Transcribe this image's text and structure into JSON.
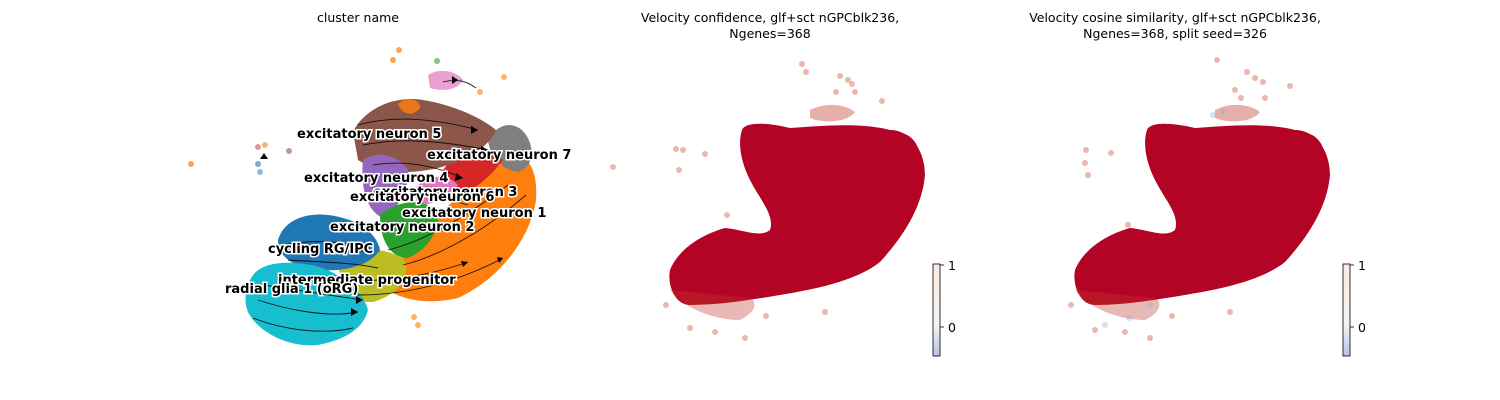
{
  "chart_data": [
    {
      "type": "scatter",
      "title": "cluster name",
      "annotations": [
        "excitatory neuron 5",
        "excitatory neuron 7",
        "excitatory neuron 4",
        "excitatory neuron 3",
        "excitatory neuron 6",
        "excitatory neuron 1",
        "excitatory neuron 2",
        "cycling RG/IPC",
        "intermediate progenitor",
        "radial glia 1 (oRG)"
      ],
      "cluster_colors": {
        "excitatory neuron 1": "#ff7f0e",
        "excitatory neuron 2": "#2ca02c",
        "excitatory neuron 3": "#d62728",
        "excitatory neuron 4": "#9467bd",
        "excitatory neuron 5": "#8c564b",
        "excitatory neuron 6": "#e377c2",
        "excitatory neuron 7": "#7f7f7f",
        "intermediate progenitor": "#bcbd22",
        "cycling RG/IPC": "#1f77b4",
        "radial glia 1 (oRG)": "#17becf"
      },
      "overlay": "velocity streamlines"
    },
    {
      "type": "scatter",
      "title": "Velocity confidence, glf+sct nGPCblk236,\nNgenes=368",
      "colorbar": {
        "ticks": [
          "1",
          "0"
        ],
        "range": [
          -0.5,
          1
        ],
        "cmap": "coolwarm"
      },
      "dominant_value": 1
    },
    {
      "type": "scatter",
      "title": "Velocity cosine similarity, glf+sct nGPCblk236,\nNgenes=368, split seed=326",
      "colorbar": {
        "ticks": [
          "1",
          "0"
        ],
        "range": [
          -0.5,
          1
        ],
        "cmap": "coolwarm"
      },
      "dominant_value": 1
    }
  ]
}
